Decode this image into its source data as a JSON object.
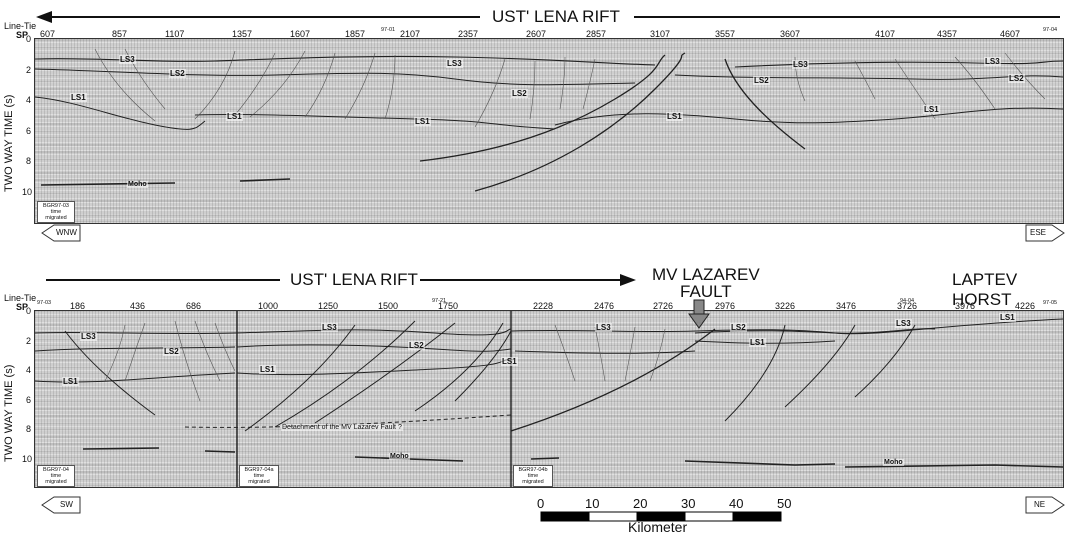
{
  "top": {
    "title": "UST' LENA RIFT",
    "line_tie_label": "Line-Tie",
    "sp_label": "SP",
    "sp_values": [
      "607",
      "857",
      "1107",
      "1357",
      "1607",
      "1857",
      "2107",
      "2357",
      "2607",
      "2857",
      "3107",
      "3557",
      "3607",
      "4107",
      "4357",
      "4607"
    ],
    "tie_marks": [
      "97-01",
      "97-04"
    ],
    "y_axis_label": "TWO WAY TIME (s)",
    "y_ticks": [
      "0",
      "2",
      "4",
      "6",
      "8",
      "10"
    ],
    "horizons": [
      "LS3",
      "LS2",
      "LS1",
      "LS3",
      "LS2",
      "LS1",
      "LS3",
      "LS2",
      "LS1",
      "LS3",
      "LS2",
      "LS1"
    ],
    "moho_label": "Moho",
    "profile_box": [
      "BGR97-03",
      "time",
      "migrated"
    ],
    "left_dir": "WNW",
    "right_dir": "ESE"
  },
  "bottom": {
    "rift_title": "UST' LENA RIFT",
    "fault_title_line1": "MV LAZAREV",
    "fault_title_line2": "FAULT",
    "horst_title": "LAPTEV HORST",
    "line_tie_label": "Line-Tie",
    "sp_label": "SP",
    "sp_values": [
      "186",
      "436",
      "686",
      "1000",
      "1250",
      "1500",
      "1750",
      "2228",
      "2476",
      "2726",
      "2976",
      "3226",
      "3476",
      "3726",
      "3976",
      "4226"
    ],
    "tie_marks": [
      "97-03",
      "97-21",
      "94-04",
      "97-05"
    ],
    "y_axis_label": "TWO WAY TIME (s)",
    "y_ticks": [
      "0",
      "2",
      "4",
      "6",
      "8",
      "10"
    ],
    "horizons": [
      "LS3",
      "LS2",
      "LS1",
      "LS3",
      "LS2",
      "LS1",
      "LS3",
      "LS1",
      "LS2",
      "LS1",
      "LS3",
      "LS1"
    ],
    "detachment_label": "Detachment of the MV Lazarev Fault ?",
    "moho_label": "Moho",
    "profile_boxes": [
      [
        "BGR97-04",
        "time",
        "migrated"
      ],
      [
        "BGR97-04a",
        "time",
        "migrated"
      ],
      [
        "BGR97-04b",
        "time",
        "migrated"
      ]
    ],
    "left_dir": "SW",
    "right_dir": "NE"
  },
  "scale": {
    "ticks": [
      "0",
      "10",
      "20",
      "30",
      "40",
      "50"
    ],
    "unit": "Kilometer"
  }
}
